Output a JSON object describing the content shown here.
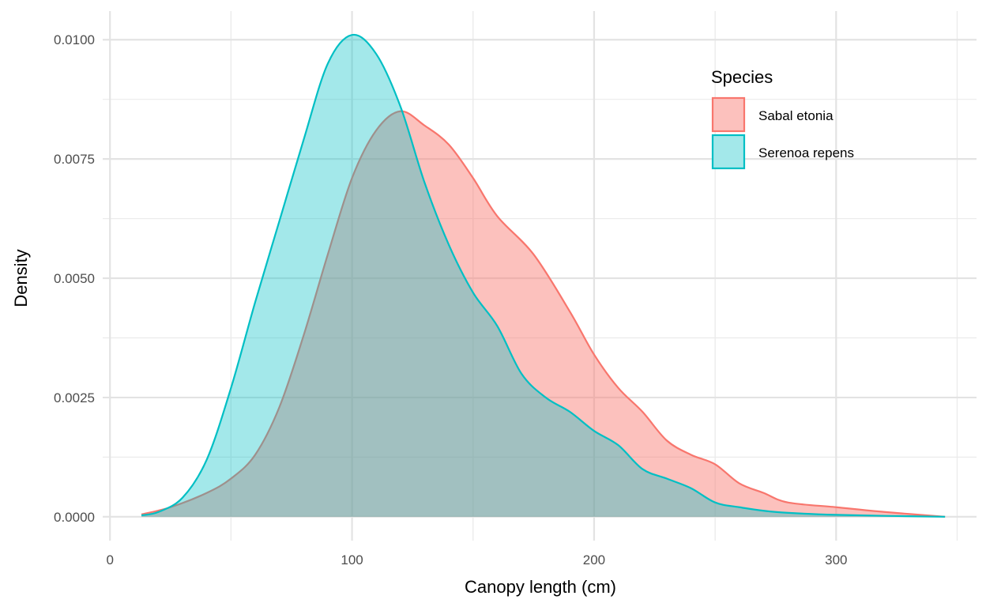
{
  "chart_data": {
    "type": "area",
    "xlabel": "Canopy length (cm)",
    "ylabel": "Density",
    "xlim": [
      -3,
      358
    ],
    "ylim": [
      -0.0005,
      0.0106
    ],
    "x_ticks": [
      0,
      100,
      200,
      300
    ],
    "x_tick_labels": [
      "0",
      "100",
      "200",
      "300"
    ],
    "y_ticks": [
      0,
      0.0025,
      0.005,
      0.0075,
      0.01
    ],
    "y_tick_labels": [
      "0.0000",
      "0.0025",
      "0.0050",
      "0.0075",
      "0.0100"
    ],
    "grid": true,
    "legend": {
      "title": "Species",
      "position": "top-right"
    },
    "series": [
      {
        "name": "Sabal etonia",
        "color": "#F8766D",
        "fill": "#F8766D",
        "fill_opacity": 0.45,
        "points": [
          [
            13,
            5e-05
          ],
          [
            25,
            0.0002
          ],
          [
            40,
            0.0005
          ],
          [
            50,
            0.0008
          ],
          [
            60,
            0.0013
          ],
          [
            70,
            0.0023
          ],
          [
            80,
            0.0038
          ],
          [
            90,
            0.0055
          ],
          [
            100,
            0.0071
          ],
          [
            110,
            0.0081
          ],
          [
            120,
            0.0085
          ],
          [
            130,
            0.0082
          ],
          [
            140,
            0.0078
          ],
          [
            150,
            0.0071
          ],
          [
            160,
            0.0063
          ],
          [
            175,
            0.0055
          ],
          [
            190,
            0.0043
          ],
          [
            200,
            0.0034
          ],
          [
            210,
            0.0027
          ],
          [
            220,
            0.0022
          ],
          [
            230,
            0.0016
          ],
          [
            240,
            0.0013
          ],
          [
            250,
            0.0011
          ],
          [
            260,
            0.0007
          ],
          [
            270,
            0.0005
          ],
          [
            280,
            0.0003
          ],
          [
            300,
            0.0002
          ],
          [
            320,
            0.0001
          ],
          [
            345,
            0.0
          ]
        ]
      },
      {
        "name": "Serenoa repens",
        "color": "#00BFC4",
        "fill": "#00BFC4",
        "fill_opacity": 0.36,
        "points": [
          [
            13,
            3e-05
          ],
          [
            20,
            0.0001
          ],
          [
            30,
            0.0004
          ],
          [
            40,
            0.0012
          ],
          [
            50,
            0.0027
          ],
          [
            60,
            0.0045
          ],
          [
            70,
            0.0062
          ],
          [
            80,
            0.0079
          ],
          [
            90,
            0.0095
          ],
          [
            100,
            0.0101
          ],
          [
            110,
            0.0097
          ],
          [
            120,
            0.0086
          ],
          [
            130,
            0.007
          ],
          [
            140,
            0.0057
          ],
          [
            150,
            0.0047
          ],
          [
            160,
            0.004
          ],
          [
            170,
            0.003
          ],
          [
            180,
            0.0025
          ],
          [
            190,
            0.0022
          ],
          [
            200,
            0.0018
          ],
          [
            210,
            0.0015
          ],
          [
            220,
            0.001
          ],
          [
            230,
            0.0008
          ],
          [
            240,
            0.0006
          ],
          [
            250,
            0.0003
          ],
          [
            260,
            0.0002
          ],
          [
            275,
            0.0001
          ],
          [
            300,
            4e-05
          ],
          [
            345,
            0.0
          ]
        ]
      }
    ]
  }
}
